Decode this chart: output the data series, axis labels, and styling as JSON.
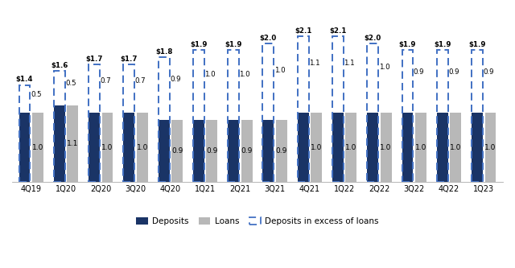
{
  "categories": [
    "4Q19",
    "1Q20",
    "2Q20",
    "3Q20",
    "4Q20",
    "1Q21",
    "2Q21",
    "3Q21",
    "4Q21",
    "1Q22",
    "2Q22",
    "3Q22",
    "4Q22",
    "1Q23"
  ],
  "deposits": [
    1.4,
    1.6,
    1.7,
    1.7,
    1.8,
    1.9,
    1.9,
    2.0,
    2.1,
    2.1,
    2.0,
    1.9,
    1.9,
    1.9
  ],
  "loans": [
    1.0,
    1.1,
    1.0,
    1.0,
    0.9,
    0.9,
    0.9,
    0.9,
    1.0,
    1.0,
    1.0,
    1.0,
    1.0,
    1.0
  ],
  "excess": [
    0.5,
    0.5,
    0.7,
    0.7,
    0.9,
    1.0,
    1.0,
    1.0,
    1.1,
    1.1,
    1.0,
    0.9,
    0.9,
    0.9
  ],
  "deposit_color": "#1a3466",
  "loan_color": "#b8b8b8",
  "excess_color": "#ffffff",
  "excess_edge_color": "#4472c4",
  "deposit_labels": [
    "$1.4",
    "$1.6",
    "$1.7",
    "$1.7",
    "$1.8",
    "$1.9",
    "$1.9",
    "$2.0",
    "$2.1",
    "$2.1",
    "$2.0",
    "$1.9",
    "$1.9",
    "$1.9"
  ],
  "excess_labels": [
    "0.5",
    "0.5",
    "0.7",
    "0.7",
    "0.9",
    "1.0",
    "1.0",
    "1.0",
    "1.1",
    "1.1",
    "1.0",
    "0.9",
    "0.9",
    "0.9"
  ],
  "loan_labels": [
    "1.0",
    "1.1",
    "1.0",
    "1.0",
    "0.9",
    "0.9",
    "0.9",
    "0.9",
    "1.0",
    "1.0",
    "1.0",
    "1.0",
    "1.0",
    "1.0"
  ],
  "ylim": [
    0,
    2.45
  ],
  "background_color": "#ffffff",
  "legend_labels": [
    "Deposits",
    "Loans",
    "Deposits in excess of loans"
  ]
}
